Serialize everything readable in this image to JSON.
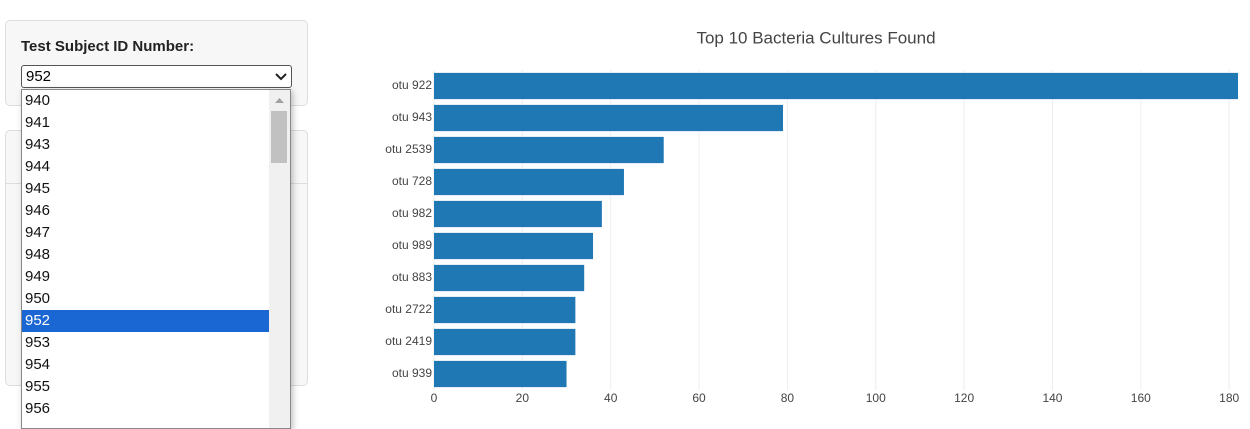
{
  "selector": {
    "label": "Test Subject ID Number:",
    "selected": "952",
    "options": [
      "940",
      "941",
      "943",
      "944",
      "945",
      "946",
      "947",
      "948",
      "949",
      "950",
      "952",
      "953",
      "954",
      "955",
      "956"
    ]
  },
  "chart_data": {
    "type": "bar",
    "orientation": "horizontal",
    "title": "Top 10 Bacteria Cultures Found",
    "categories": [
      "otu 922",
      "otu 943",
      "otu 2539",
      "otu 728",
      "otu 982",
      "otu 989",
      "otu 883",
      "otu 2722",
      "otu 2419",
      "otu 939"
    ],
    "values": [
      182,
      79,
      52,
      43,
      38,
      36,
      34,
      32,
      32,
      30
    ],
    "color": "#1f77b4",
    "xlim": [
      0,
      182
    ],
    "xticks": [
      0,
      20,
      40,
      60,
      80,
      100,
      120,
      140,
      160,
      180
    ],
    "grid": true
  }
}
